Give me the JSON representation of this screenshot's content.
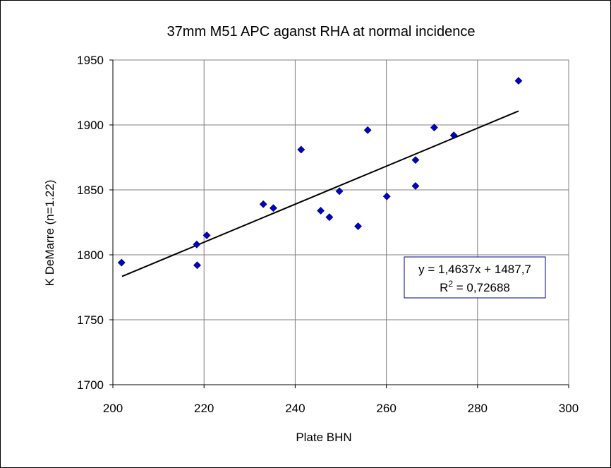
{
  "chart_data": {
    "type": "scatter",
    "title": "37mm M51 APC aganst RHA at normal incidence",
    "xlabel": "Plate BHN",
    "ylabel": "K DeMarre (n=1.22)",
    "xlim": [
      200,
      300
    ],
    "ylim": [
      1700,
      1950
    ],
    "xticks": [
      200,
      220,
      240,
      260,
      280,
      300
    ],
    "yticks": [
      1700,
      1750,
      1800,
      1850,
      1900,
      1950
    ],
    "grid": true,
    "series": [
      {
        "marker": "diamond",
        "color": "#0000cc",
        "points": [
          {
            "x": 201.9,
            "y": 1794
          },
          {
            "x": 218.4,
            "y": 1808
          },
          {
            "x": 218.5,
            "y": 1792
          },
          {
            "x": 220.6,
            "y": 1815
          },
          {
            "x": 233.0,
            "y": 1839
          },
          {
            "x": 235.2,
            "y": 1836
          },
          {
            "x": 241.3,
            "y": 1881
          },
          {
            "x": 245.6,
            "y": 1834
          },
          {
            "x": 247.5,
            "y": 1829
          },
          {
            "x": 249.7,
            "y": 1849
          },
          {
            "x": 253.8,
            "y": 1822
          },
          {
            "x": 255.9,
            "y": 1896
          },
          {
            "x": 260.1,
            "y": 1845
          },
          {
            "x": 266.4,
            "y": 1873
          },
          {
            "x": 266.4,
            "y": 1853
          },
          {
            "x": 270.5,
            "y": 1898
          },
          {
            "x": 274.8,
            "y": 1892
          },
          {
            "x": 289.0,
            "y": 1934
          }
        ]
      }
    ],
    "trendline": {
      "slope": 1.4637,
      "intercept": 1487.7,
      "x_range": [
        202,
        289
      ],
      "color": "#000000"
    },
    "annotation": {
      "equation": "y = 1,4637x + 1487,7",
      "r2_label": "R",
      "r2_exponent": "2",
      "r2_value": " = 0,72688",
      "border_color": "#000080"
    },
    "colors": {
      "plot_background": "#ffffff",
      "grid": "#808080",
      "marker": "#0000cc"
    }
  }
}
